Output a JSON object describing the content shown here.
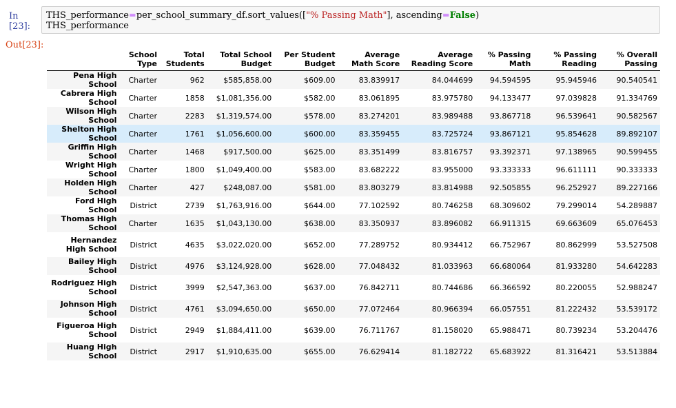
{
  "input_cell": {
    "prompt": "In [23]:",
    "line1": {
      "var": "THS_performance",
      "eq": "=",
      "call_start": "per_school_summary_df.sort_values([",
      "str": "\"% Passing Math\"",
      "mid": "], ascending",
      "eq2": "=",
      "kw": "False",
      "end": ")"
    },
    "line2": "THS_performance"
  },
  "output_cell": {
    "prompt": "Out[23]:",
    "columns": [
      "",
      "School Type",
      "Total Students",
      "Total School Budget",
      "Per Student Budget",
      "Average Math Score",
      "Average Reading Score",
      "% Passing Math",
      "% Passing Reading",
      "% Overall Passing"
    ],
    "rows": [
      [
        "Pena High School",
        "Charter",
        "962",
        "$585,858.00",
        "$609.00",
        "83.839917",
        "84.044699",
        "94.594595",
        "95.945946",
        "90.540541"
      ],
      [
        "Cabrera High School",
        "Charter",
        "1858",
        "$1,081,356.00",
        "$582.00",
        "83.061895",
        "83.975780",
        "94.133477",
        "97.039828",
        "91.334769"
      ],
      [
        "Wilson High School",
        "Charter",
        "2283",
        "$1,319,574.00",
        "$578.00",
        "83.274201",
        "83.989488",
        "93.867718",
        "96.539641",
        "90.582567"
      ],
      [
        "Shelton High School",
        "Charter",
        "1761",
        "$1,056,600.00",
        "$600.00",
        "83.359455",
        "83.725724",
        "93.867121",
        "95.854628",
        "89.892107"
      ],
      [
        "Griffin High School",
        "Charter",
        "1468",
        "$917,500.00",
        "$625.00",
        "83.351499",
        "83.816757",
        "93.392371",
        "97.138965",
        "90.599455"
      ],
      [
        "Wright High School",
        "Charter",
        "1800",
        "$1,049,400.00",
        "$583.00",
        "83.682222",
        "83.955000",
        "93.333333",
        "96.611111",
        "90.333333"
      ],
      [
        "Holden High School",
        "Charter",
        "427",
        "$248,087.00",
        "$581.00",
        "83.803279",
        "83.814988",
        "92.505855",
        "96.252927",
        "89.227166"
      ],
      [
        "Ford High School",
        "District",
        "2739",
        "$1,763,916.00",
        "$644.00",
        "77.102592",
        "80.746258",
        "68.309602",
        "79.299014",
        "54.289887"
      ],
      [
        "Thomas High School",
        "Charter",
        "1635",
        "$1,043,130.00",
        "$638.00",
        "83.350937",
        "83.896082",
        "66.911315",
        "69.663609",
        "65.076453"
      ],
      [
        "Hernandez High School",
        "District",
        "4635",
        "$3,022,020.00",
        "$652.00",
        "77.289752",
        "80.934412",
        "66.752967",
        "80.862999",
        "53.527508"
      ],
      [
        "Bailey High School",
        "District",
        "4976",
        "$3,124,928.00",
        "$628.00",
        "77.048432",
        "81.033963",
        "66.680064",
        "81.933280",
        "54.642283"
      ],
      [
        "Rodriguez High School",
        "District",
        "3999",
        "$2,547,363.00",
        "$637.00",
        "76.842711",
        "80.744686",
        "66.366592",
        "80.220055",
        "52.988247"
      ],
      [
        "Johnson High School",
        "District",
        "4761",
        "$3,094,650.00",
        "$650.00",
        "77.072464",
        "80.966394",
        "66.057551",
        "81.222432",
        "53.539172"
      ],
      [
        "Figueroa High School",
        "District",
        "2949",
        "$1,884,411.00",
        "$639.00",
        "76.711767",
        "81.158020",
        "65.988471",
        "80.739234",
        "53.204476"
      ],
      [
        "Huang High School",
        "District",
        "2917",
        "$1,910,635.00",
        "$655.00",
        "76.629414",
        "81.182722",
        "65.683922",
        "81.316421",
        "53.513884"
      ]
    ]
  }
}
